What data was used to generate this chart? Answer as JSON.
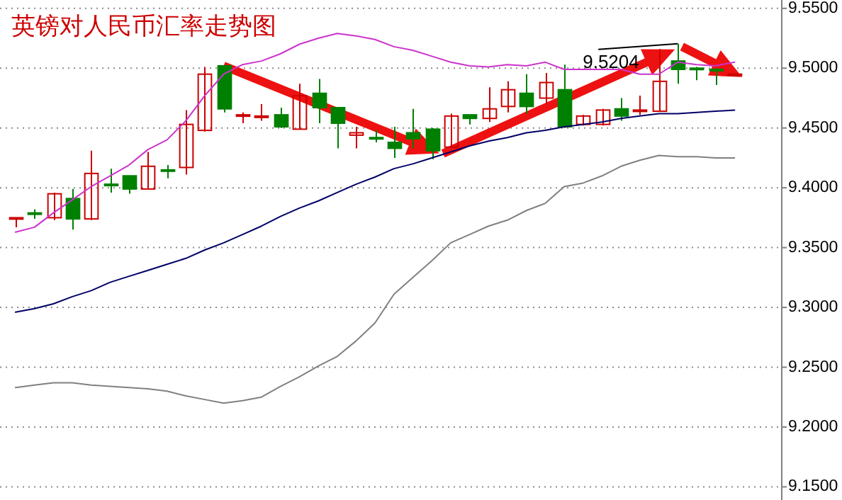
{
  "chart_data": {
    "type": "candlestick",
    "title": "英镑对人民币汇率走势图",
    "categories": [
      null,
      null,
      null,
      null,
      null,
      null,
      null,
      null,
      null,
      null,
      null,
      null,
      null,
      null,
      null,
      null,
      null,
      null,
      null,
      null,
      null,
      null,
      null,
      null,
      null,
      null,
      null,
      null,
      null,
      null,
      null,
      null,
      null,
      null,
      null,
      null,
      null,
      null,
      null
    ],
    "ohlc": [
      [
        9.374,
        9.375,
        9.367,
        9.375
      ],
      [
        9.379,
        9.382,
        9.374,
        9.378
      ],
      [
        9.375,
        9.396,
        9.373,
        9.395
      ],
      [
        9.391,
        9.399,
        9.365,
        9.374
      ],
      [
        9.374,
        9.431,
        9.373,
        9.412
      ],
      [
        9.403,
        9.416,
        9.396,
        9.402
      ],
      [
        9.41,
        9.41,
        9.395,
        9.399
      ],
      [
        9.399,
        9.43,
        9.399,
        9.418
      ],
      [
        9.415,
        9.419,
        9.408,
        9.414
      ],
      [
        9.417,
        9.465,
        9.411,
        9.453
      ],
      [
        9.448,
        9.501,
        9.447,
        9.495
      ],
      [
        9.502,
        9.502,
        9.463,
        9.466
      ],
      [
        9.46,
        9.463,
        9.454,
        9.461
      ],
      [
        9.459,
        9.47,
        9.456,
        9.46
      ],
      [
        9.461,
        9.467,
        9.45,
        9.451
      ],
      [
        9.449,
        9.487,
        9.449,
        9.477
      ],
      [
        9.479,
        9.491,
        9.454,
        9.467
      ],
      [
        9.467,
        9.467,
        9.433,
        9.454
      ],
      [
        9.444,
        9.451,
        9.433,
        9.446
      ],
      [
        9.442,
        9.448,
        9.438,
        9.441
      ],
      [
        9.438,
        9.451,
        9.425,
        9.433
      ],
      [
        9.446,
        9.466,
        9.433,
        9.441
      ],
      [
        9.449,
        9.45,
        9.424,
        9.431
      ],
      [
        9.434,
        9.462,
        9.434,
        9.46
      ],
      [
        9.461,
        9.461,
        9.453,
        9.458
      ],
      [
        9.458,
        9.484,
        9.455,
        9.466
      ],
      [
        9.468,
        9.489,
        9.463,
        9.482
      ],
      [
        9.479,
        9.495,
        9.462,
        9.468
      ],
      [
        9.475,
        9.496,
        9.47,
        9.488
      ],
      [
        9.482,
        9.503,
        9.45,
        9.451
      ],
      [
        9.453,
        9.461,
        9.452,
        9.46
      ],
      [
        9.453,
        9.466,
        9.452,
        9.465
      ],
      [
        9.466,
        9.475,
        9.456,
        9.46
      ],
      [
        9.464,
        9.477,
        9.461,
        9.465
      ],
      [
        9.464,
        9.516,
        9.464,
        9.489
      ],
      [
        9.506,
        9.5204,
        9.487,
        9.499
      ],
      [
        9.5,
        9.501,
        9.49,
        9.499
      ],
      [
        9.499,
        9.5,
        9.486,
        9.498
      ],
      [
        9.494,
        9.495,
        9.494,
        9.495
      ]
    ],
    "colors": [
      "#cc0000",
      "#008000",
      "#cc0000",
      "#008000",
      "#cc0000",
      "#008000",
      "#008000",
      "#cc0000",
      "#008000",
      "#cc0000",
      "#cc0000",
      "#008000",
      "#cc0000",
      "#cc0000",
      "#008000",
      "#cc0000",
      "#008000",
      "#008000",
      "#cc0000",
      "#008000",
      "#008000",
      "#008000",
      "#008000",
      "#cc0000",
      "#008000",
      "#cc0000",
      "#cc0000",
      "#008000",
      "#cc0000",
      "#008000",
      "#cc0000",
      "#cc0000",
      "#008000",
      "#cc0000",
      "#cc0000",
      "#008000",
      "#008000",
      "#008000",
      "#cc0000"
    ],
    "series": [
      {
        "type": "line",
        "color": "#cc33cc",
        "values": [
          9.363,
          9.367,
          9.379,
          9.39,
          9.401,
          9.41,
          9.419,
          9.432,
          9.44,
          9.456,
          9.477,
          9.495,
          9.503,
          9.506,
          9.512,
          9.52,
          9.525,
          9.529,
          9.527,
          9.524,
          9.518,
          9.515,
          9.51,
          9.505,
          9.502,
          9.501,
          9.503,
          9.502,
          9.505,
          9.499,
          9.499,
          9.499,
          9.499,
          9.495,
          9.495,
          9.505,
          9.503,
          9.502,
          9.505
        ]
      },
      {
        "type": "line",
        "color": "#000066",
        "values": [
          9.296,
          9.299,
          9.303,
          9.309,
          9.314,
          9.321,
          9.326,
          9.331,
          9.336,
          9.341,
          9.348,
          9.354,
          9.361,
          9.368,
          9.376,
          9.383,
          9.389,
          9.396,
          9.403,
          9.409,
          9.416,
          9.42,
          9.425,
          9.43,
          9.435,
          9.439,
          9.442,
          9.446,
          9.448,
          9.451,
          9.453,
          9.455,
          9.458,
          9.46,
          9.462,
          9.462,
          9.463,
          9.464,
          9.465
        ]
      },
      {
        "type": "line",
        "color": "#808080",
        "values": [
          9.233,
          9.235,
          9.237,
          9.237,
          9.235,
          9.234,
          9.233,
          9.232,
          9.23,
          9.226,
          9.223,
          9.22,
          9.222,
          9.225,
          9.234,
          9.242,
          9.251,
          9.259,
          9.272,
          9.287,
          9.311,
          9.325,
          9.339,
          9.354,
          9.361,
          9.368,
          9.373,
          9.381,
          9.387,
          9.401,
          9.404,
          9.41,
          9.418,
          9.423,
          9.427,
          9.426,
          9.426,
          9.425,
          9.425
        ]
      }
    ],
    "ylim": [
      9.139,
      9.557
    ],
    "yticks": [
      {
        "value": 9.15,
        "label": "9.1500"
      },
      {
        "value": 9.2,
        "label": "9.2000"
      },
      {
        "value": 9.25,
        "label": "9.2500"
      },
      {
        "value": 9.3,
        "label": "9.3000"
      },
      {
        "value": 9.35,
        "label": "9.3500"
      },
      {
        "value": 9.4,
        "label": "9.4000"
      },
      {
        "value": 9.45,
        "label": "9.4500"
      },
      {
        "value": 9.5,
        "label": "9.5000"
      },
      {
        "value": 9.55,
        "label": "9.5500"
      }
    ],
    "grid": "y",
    "tick_labels": "y",
    "annotations": [
      "9.5204"
    ]
  }
}
